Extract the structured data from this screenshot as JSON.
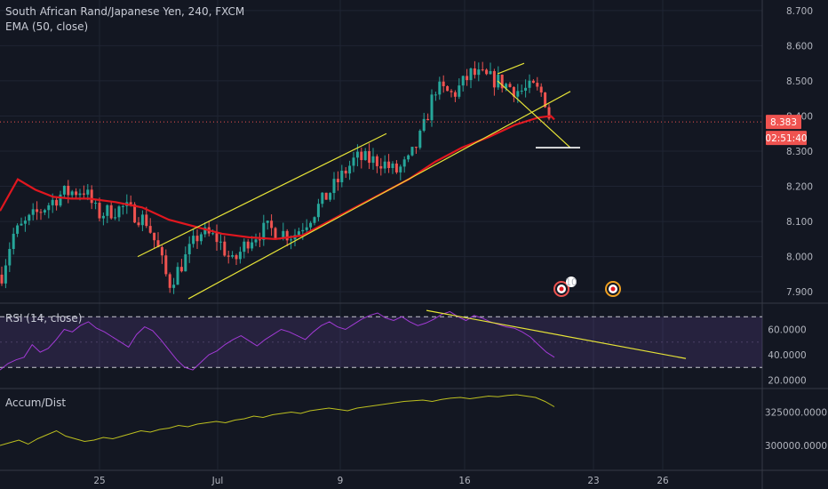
{
  "header": {
    "title": "South African Rand/Japanese Yen, 240, FXCM",
    "ema_label": "EMA (50, close)",
    "rsi_label": "RSI (14, close)",
    "ad_label": "Accum/Dist"
  },
  "price_tag": {
    "value": "8.383",
    "countdown": "02:51:40"
  },
  "colors": {
    "background": "#131722",
    "grid": "#1f2433",
    "up": "#26a69a",
    "down": "#ef5350",
    "ema": "#e0171f",
    "trendline": "#e6e337",
    "rsi": "#a23ad6",
    "ad": "#bcbf1f"
  },
  "chart_data": [
    {
      "type": "candlestick",
      "title": "South African Rand/Japanese Yen, 240, FXCM",
      "indicator": "EMA (50, close)",
      "ylim": [
        7.87,
        8.73
      ],
      "y_ticks": [
        "8.700",
        "8.600",
        "8.500",
        "8.400",
        "8.300",
        "8.200",
        "8.100",
        "8.000",
        "7.900"
      ],
      "x_ticks": [
        "25",
        "Jul",
        "9",
        "16",
        "23",
        "26"
      ],
      "last_price": 8.383
    },
    {
      "type": "line",
      "title": "RSI (14, close)",
      "ylim": [
        14,
        80
      ],
      "y_ticks": [
        "60.0000",
        "40.0000",
        "20.0000"
      ],
      "bands": [
        70,
        30
      ],
      "values": [
        28,
        33,
        36,
        38,
        48,
        42,
        45,
        52,
        60,
        58,
        63,
        66,
        61,
        58,
        54,
        50,
        46,
        56,
        62,
        59,
        52,
        44,
        36,
        30,
        28,
        34,
        40,
        43,
        48,
        52,
        55,
        51,
        47,
        52,
        56,
        60,
        58,
        55,
        52,
        58,
        63,
        66,
        62,
        60,
        64,
        68,
        71,
        73,
        69,
        67,
        70,
        66,
        63,
        65,
        68,
        72,
        74,
        70,
        67,
        71,
        69,
        66,
        64,
        62,
        61,
        58,
        54,
        48,
        42,
        38
      ]
    },
    {
      "type": "line",
      "title": "Accum/Dist",
      "ylim": [
        282000,
        342000
      ],
      "y_ticks": [
        "325000.0000",
        "300000.0000"
      ],
      "values": [
        300000,
        302000,
        304000,
        301000,
        305000,
        308000,
        311000,
        307000,
        305000,
        303000,
        304000,
        306000,
        305000,
        307000,
        309000,
        311000,
        310000,
        312000,
        313000,
        315000,
        314000,
        316000,
        317000,
        318000,
        317000,
        319000,
        320000,
        322000,
        321000,
        323000,
        324000,
        325000,
        324000,
        326000,
        327000,
        328000,
        327000,
        326000,
        328000,
        329000,
        330000,
        331000,
        332000,
        333000,
        333500,
        334000,
        333000,
        334500,
        335500,
        336000,
        335000,
        336000,
        337000,
        336500,
        337500,
        338000,
        337000,
        336000,
        333000,
        329000
      ]
    }
  ]
}
